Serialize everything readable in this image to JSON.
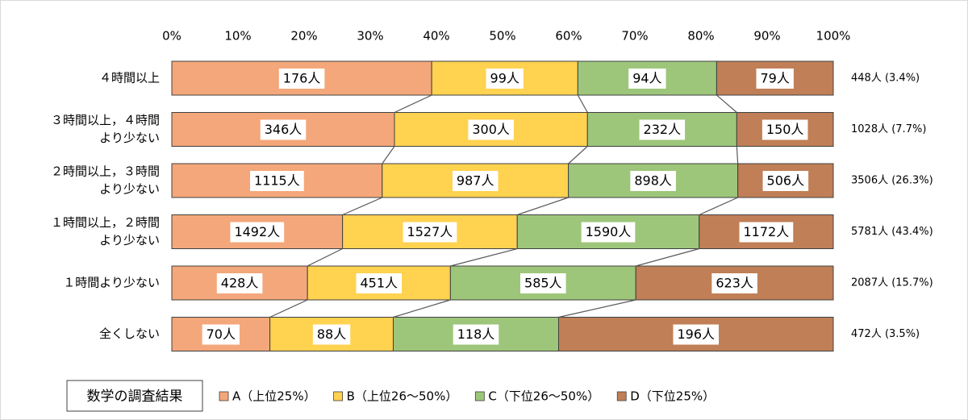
{
  "chart_data": {
    "type": "stacked-bar-100",
    "categories": [
      [
        "４時間以上"
      ],
      [
        "３時間以上，４時間",
        "より少ない"
      ],
      [
        "２時間以上，３時間",
        "より少ない"
      ],
      [
        "１時間以上，２時間",
        "より少ない"
      ],
      [
        "１時間より少ない"
      ],
      [
        "全くしない"
      ]
    ],
    "series": [
      {
        "name": "A（上位25%）",
        "color": "#f4a77a",
        "values": [
          176,
          346,
          1115,
          1492,
          428,
          70
        ],
        "value_labels": [
          "176人",
          "346人",
          "1115人",
          "1492人",
          "428人",
          "70人"
        ]
      },
      {
        "name": "B（上位26～50%）",
        "color": "#ffd250",
        "values": [
          99,
          300,
          987,
          1527,
          451,
          88
        ],
        "value_labels": [
          "99人",
          "300人",
          "987人",
          "1527人",
          "451人",
          "88人"
        ]
      },
      {
        "name": "C（下位26～50%）",
        "color": "#9dc67a",
        "values": [
          94,
          232,
          898,
          1590,
          585,
          118
        ],
        "value_labels": [
          "94人",
          "232人",
          "898人",
          "1590人",
          "585人",
          "118人"
        ]
      },
      {
        "name": "D（下位25%）",
        "color": "#c07f56",
        "values": [
          79,
          150,
          506,
          1172,
          623,
          196
        ],
        "value_labels": [
          "79人",
          "150人",
          "506人",
          "1172人",
          "623人",
          "196人"
        ]
      }
    ],
    "totals": [
      "448人 (3.4%)",
      "1028人 (7.7%)",
      "3506人 (26.3%)",
      "5781人 (43.4%)",
      "2087人 (15.7%)",
      "472人 (3.5%)"
    ],
    "xlim": [
      0,
      100
    ],
    "xticks": [
      {
        "value": 0,
        "label": "0%"
      },
      {
        "value": 10,
        "label": "10%"
      },
      {
        "value": 20,
        "label": "20%"
      },
      {
        "value": 30,
        "label": "30%"
      },
      {
        "value": 40,
        "label": "40%"
      },
      {
        "value": 50,
        "label": "50%"
      },
      {
        "value": 60,
        "label": "60%"
      },
      {
        "value": 70,
        "label": "70%"
      },
      {
        "value": 80,
        "label": "80%"
      },
      {
        "value": 90,
        "label": "90%"
      },
      {
        "value": 100,
        "label": "100%"
      }
    ],
    "legend_title": "数学の調査結果"
  }
}
